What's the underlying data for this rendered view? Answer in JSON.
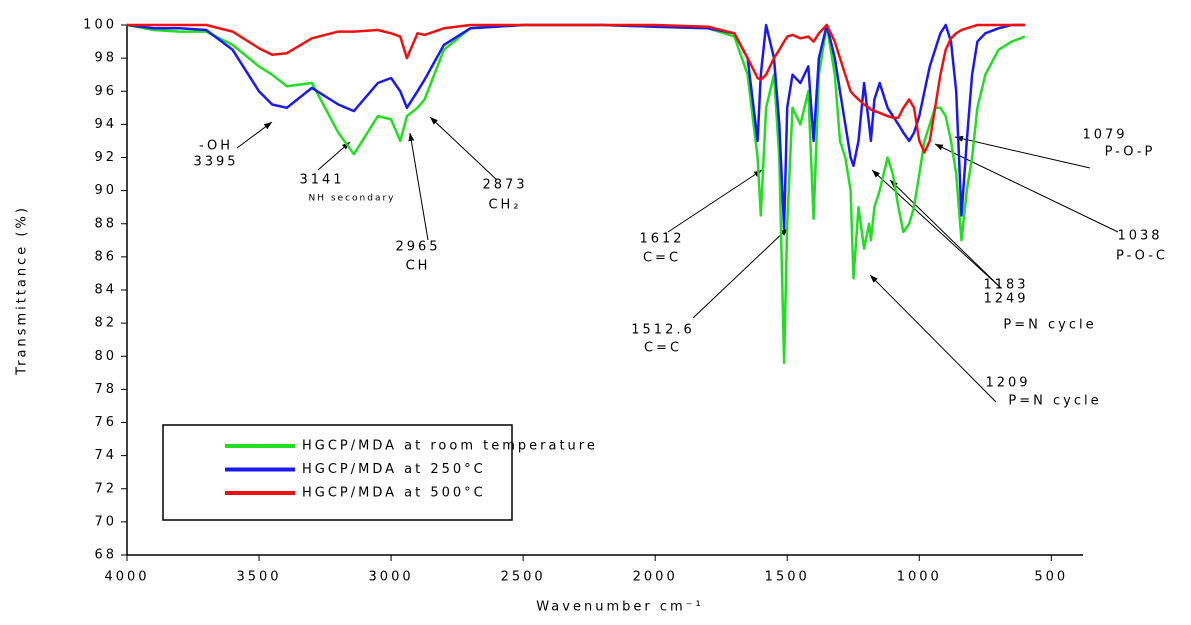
{
  "chart_data": {
    "type": "line",
    "y_label": "Transmittance (%)",
    "x_label": "Wavenumber cm⁻¹",
    "xlim": [
      4000,
      380
    ],
    "ylim": [
      68,
      100
    ],
    "xticks": [
      4000,
      3500,
      3000,
      2500,
      2000,
      1500,
      1000,
      500
    ],
    "yticks": [
      68,
      70,
      72,
      74,
      76,
      78,
      80,
      82,
      84,
      86,
      88,
      90,
      92,
      94,
      96,
      98,
      100
    ],
    "x": [
      4000,
      3900,
      3800,
      3700,
      3600,
      3500,
      3450,
      3395,
      3300,
      3200,
      3141,
      3050,
      3000,
      2965,
      2940,
      2900,
      2873,
      2800,
      2700,
      2500,
      2200,
      2000,
      1800,
      1700,
      1650,
      1612,
      1600,
      1580,
      1550,
      1530,
      1512,
      1500,
      1480,
      1450,
      1420,
      1400,
      1380,
      1350,
      1320,
      1300,
      1280,
      1260,
      1249,
      1230,
      1209,
      1190,
      1183,
      1170,
      1150,
      1120,
      1100,
      1079,
      1060,
      1038,
      1020,
      1000,
      980,
      960,
      940,
      920,
      900,
      880,
      860,
      840,
      820,
      800,
      780,
      750,
      700,
      650,
      600
    ],
    "series": [
      {
        "name": "HGCP/MDA at room temperature",
        "color": "#22dd22",
        "values": [
          100,
          99.7,
          99.6,
          99.6,
          98.8,
          97.5,
          97,
          96.3,
          96.5,
          93.5,
          92.2,
          94.5,
          94.3,
          93,
          94.5,
          95,
          95.5,
          98.5,
          99.8,
          100,
          100,
          99.9,
          99.8,
          99.3,
          97,
          92,
          88.5,
          95,
          97,
          92,
          79.6,
          88,
          95,
          94,
          96,
          88.3,
          97,
          100,
          97,
          93,
          92,
          90,
          84.7,
          89,
          86.5,
          88,
          87,
          89,
          90,
          92,
          91,
          89,
          87.5,
          88,
          89,
          91,
          93,
          94,
          95,
          95,
          94.5,
          93,
          91,
          87,
          90,
          92,
          95,
          97,
          98.5,
          99,
          99.3
        ]
      },
      {
        "name": "HGCP/MDA at 250°C",
        "color": "#1a1aee",
        "values": [
          100,
          99.8,
          99.8,
          99.7,
          98.5,
          96,
          95.2,
          95,
          96.2,
          95.2,
          94.8,
          96.5,
          96.8,
          96,
          95,
          96,
          96.7,
          98.8,
          99.8,
          100,
          100,
          99.9,
          99.8,
          99.5,
          98,
          93,
          97,
          100,
          98,
          94,
          87.7,
          95,
          97,
          96.5,
          97.5,
          93,
          98,
          100,
          98,
          96,
          94,
          92,
          91.5,
          93,
          96.5,
          94,
          93,
          95.5,
          96.5,
          95,
          94.5,
          94,
          93.5,
          93,
          93.5,
          94.5,
          96,
          97.5,
          98.5,
          99.5,
          100,
          99,
          96,
          88.5,
          93,
          97,
          99,
          99.5,
          99.8,
          100,
          100
        ]
      },
      {
        "name": "HGCP/MDA at 500°C",
        "color": "#ee1111",
        "values": [
          100,
          100,
          100,
          100,
          99.6,
          98.6,
          98.2,
          98.3,
          99.2,
          99.6,
          99.6,
          99.7,
          99.5,
          99.3,
          98,
          99.5,
          99.4,
          99.8,
          100,
          100,
          100,
          100,
          99.9,
          99.5,
          98,
          96.8,
          96.7,
          97,
          98,
          98.5,
          99,
          99.3,
          99.4,
          99.2,
          99.3,
          99,
          99.5,
          100,
          99,
          98,
          97,
          96,
          95.8,
          95.5,
          95.2,
          95,
          94.9,
          94.8,
          94.7,
          94.5,
          94.4,
          94.4,
          95,
          95.5,
          95,
          93,
          92.3,
          93,
          95,
          97,
          98.5,
          99.2,
          99.5,
          99.7,
          99.8,
          99.9,
          100,
          100,
          100,
          100,
          100
        ]
      }
    ],
    "annotations": [
      {
        "lines": [
          "-OH",
          "3395"
        ],
        "color": "#1a1aee"
      },
      {
        "lines": [
          "3141",
          "NH secondary"
        ],
        "color": "#1a1aee"
      },
      {
        "lines": [
          "2965",
          "CH"
        ],
        "color": "#1a1aee"
      },
      {
        "lines": [
          "2873",
          "CH₂"
        ],
        "color": "#1a1aee"
      },
      {
        "lines": [
          "1612",
          "C=C"
        ],
        "color": "#22dd22"
      },
      {
        "lines": [
          "1512.6",
          "C=C"
        ],
        "color": "#1a1aee"
      },
      {
        "lines": [
          "1209",
          "P=N cycle"
        ],
        "color": "#22dd22"
      },
      {
        "lines": [
          "1183",
          "1249",
          "P=N cycle"
        ],
        "color": "#1a1aee"
      },
      {
        "lines": [
          "1079",
          "P-O-P"
        ],
        "color": "#ee1111"
      },
      {
        "lines": [
          "1038",
          "P-O-C"
        ],
        "color": "#1a1aee"
      }
    ]
  }
}
